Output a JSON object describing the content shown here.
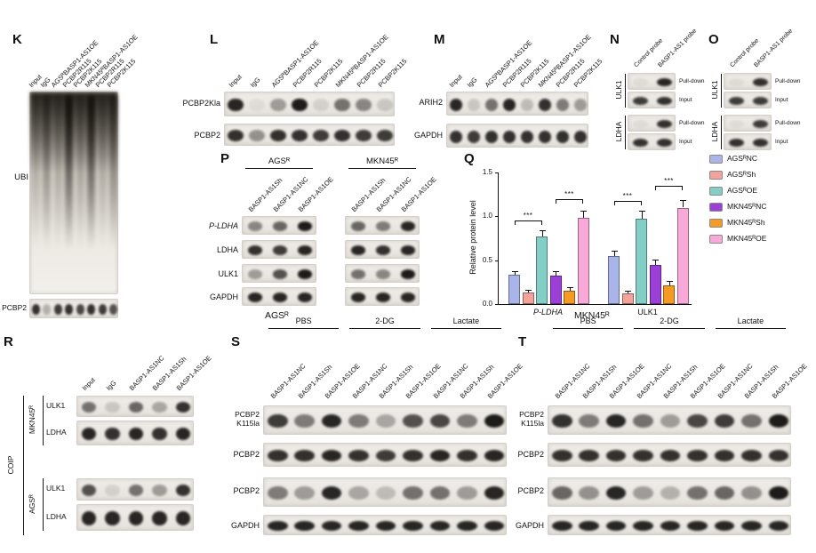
{
  "panels": {
    "K": {
      "letter": "K",
      "row_labels": [
        "UBI",
        "PCBP2"
      ],
      "lanes": [
        "Input",
        "IgG",
        "AGSᴿBASP1-AS1OE",
        "PCBP2R115",
        "PCBP2K115",
        "MKN45ᴿBASP1-AS1OE",
        "PCBP2R115",
        "PCBP2K115"
      ],
      "ubi_smear": [
        0.3,
        0.55,
        0.35,
        0.95,
        0.4,
        0.9,
        0.35,
        0.6
      ],
      "bands": {
        "PCBP2": [
          0.85,
          0.25,
          0.8,
          0.85,
          0.75,
          0.85,
          0.8,
          0.7
        ]
      }
    },
    "L": {
      "letter": "L",
      "row_labels": [
        "PCBP2Kla",
        "PCBP2"
      ],
      "lanes": [
        "Input",
        "IgG",
        "AGSᴿBASP1-AS1OE",
        "PCBP2R115",
        "PCBP2K115",
        "MKN45ᴿBASP1-AS1OE",
        "PCBP2R115",
        "PCBP2K115"
      ],
      "bands": {
        "row1": [
          0.9,
          0.05,
          0.35,
          0.95,
          0.1,
          0.55,
          0.45,
          0.15
        ],
        "row2": [
          0.85,
          0.4,
          0.85,
          0.85,
          0.8,
          0.85,
          0.8,
          0.8
        ]
      }
    },
    "M": {
      "letter": "M",
      "row_labels": [
        "ARIH2",
        "GAPDH"
      ],
      "lanes": [
        "Input",
        "IgG",
        "AGSᴿBASP1-AS1OE",
        "PCBP2R115",
        "PCBP2K115",
        "MKN45ᴿBASP1-AS1OE",
        "PCBP2R115",
        "PCBP2K115"
      ],
      "bands": {
        "row1": [
          0.9,
          0.15,
          0.55,
          0.9,
          0.2,
          0.85,
          0.5,
          0.35
        ],
        "row2": [
          0.85,
          0.8,
          0.85,
          0.85,
          0.85,
          0.85,
          0.85,
          0.85
        ]
      }
    },
    "N": {
      "letter": "N",
      "columns": [
        "Control probe",
        "BASP1-AS1 probe"
      ],
      "targets": [
        "ULK1",
        "LDHA"
      ],
      "row_labels": [
        "Pull-down",
        "Input",
        "Pull-down",
        "Input"
      ],
      "bands": [
        [
          0.05,
          0.9
        ],
        [
          0.8,
          0.85
        ],
        [
          0.05,
          0.85
        ],
        [
          0.85,
          0.85
        ]
      ]
    },
    "O": {
      "letter": "O",
      "columns": [
        "Control probe",
        "BASP1-AS1 probe"
      ],
      "targets": [
        "ULK1",
        "LDHA"
      ],
      "row_labels": [
        "Pull-down",
        "Input",
        "Pull-down",
        "Input"
      ],
      "bands": [
        [
          0.05,
          0.85
        ],
        [
          0.8,
          0.8
        ],
        [
          0.05,
          0.8
        ],
        [
          0.85,
          0.85
        ]
      ]
    },
    "P": {
      "letter": "P",
      "groups": [
        "AGSᴿ",
        "MKN45ᴿ"
      ],
      "lanes": [
        "BASP1-AS1Sh",
        "BASP1-AS1NC",
        "BASP1-AS1OE"
      ],
      "row_labels": [
        "P-LDHA",
        "LDHA",
        "ULK1",
        "GAPDH"
      ],
      "bands": [
        [
          [
            0.45,
            0.6,
            0.95
          ],
          [
            0.85,
            0.8,
            0.9
          ],
          [
            0.35,
            0.7,
            0.95
          ],
          [
            0.9,
            0.9,
            0.9
          ]
        ],
        [
          [
            0.6,
            0.5,
            0.9
          ],
          [
            0.9,
            0.85,
            0.9
          ],
          [
            0.55,
            0.45,
            0.95
          ],
          [
            0.9,
            0.9,
            0.9
          ]
        ]
      ]
    },
    "Q": {
      "letter": "Q"
    },
    "R": {
      "letter": "R",
      "side_label": "COIP",
      "groups": [
        "MKN45ᴿ",
        "AGSᴿ"
      ],
      "row_labels": [
        "ULK1",
        "LDHA"
      ],
      "lanes": [
        "Input",
        "IgG",
        "BASP1-AS1NC",
        "BASP1-AS1Sh",
        "BASP1-AS1OE"
      ],
      "bands": [
        [
          0.55,
          0.15,
          0.6,
          0.3,
          0.85
        ],
        [
          0.9,
          0.85,
          0.9,
          0.85,
          0.9
        ],
        [
          0.7,
          0.1,
          0.55,
          0.35,
          0.85
        ],
        [
          0.9,
          0.9,
          0.9,
          0.9,
          0.9
        ]
      ]
    },
    "S": {
      "letter": "S",
      "title": "AGSᴿ",
      "groups": [
        "PBS",
        "2-DG",
        "Lactate"
      ],
      "lanes": [
        "BASP1-AS1NC",
        "BASP1-AS1Sh",
        "BASP1-AS1OE"
      ],
      "row_label_lines": [
        "PCBP2",
        "K115la",
        "PCBP2",
        "PCBP2",
        "GAPDH"
      ],
      "bands": [
        [
          0.8,
          0.5,
          0.9,
          0.5,
          0.3,
          0.7,
          0.75,
          0.5,
          0.95
        ],
        [
          0.85,
          0.85,
          0.9,
          0.85,
          0.8,
          0.85,
          0.9,
          0.85,
          0.9
        ],
        [
          0.5,
          0.35,
          0.9,
          0.3,
          0.2,
          0.55,
          0.55,
          0.35,
          0.9
        ],
        [
          0.9,
          0.9,
          0.9,
          0.9,
          0.9,
          0.9,
          0.9,
          0.9,
          0.9
        ]
      ]
    },
    "T": {
      "letter": "T",
      "title": "MKN45ᴿ",
      "groups": [
        "PBS",
        "2-DG",
        "Lactate"
      ],
      "lanes": [
        "BASP1-AS1NC",
        "BASP1-AS1Sh",
        "BASP1-AS1OE"
      ],
      "row_label_lines": [
        "PCBP2",
        "K115la",
        "PCBP2",
        "PCBP2",
        "GAPDH"
      ],
      "bands": [
        [
          0.85,
          0.5,
          0.9,
          0.55,
          0.35,
          0.75,
          0.8,
          0.55,
          0.95
        ],
        [
          0.85,
          0.85,
          0.85,
          0.85,
          0.85,
          0.85,
          0.85,
          0.85,
          0.85
        ],
        [
          0.6,
          0.4,
          0.9,
          0.35,
          0.25,
          0.55,
          0.6,
          0.4,
          0.95
        ],
        [
          0.9,
          0.9,
          0.9,
          0.9,
          0.9,
          0.9,
          0.9,
          0.9,
          0.9
        ]
      ]
    }
  },
  "chart_data": {
    "type": "bar",
    "title": "",
    "ylabel": "Relative protein level",
    "ylim": [
      0,
      1.5
    ],
    "yticks": [
      0.0,
      0.5,
      1.0,
      1.5
    ],
    "categories": [
      "P-LDHA",
      "ULK1"
    ],
    "series": [
      {
        "name": "AGSᴿNC",
        "color": "#a9b5e8",
        "values": [
          0.33,
          0.55
        ]
      },
      {
        "name": "AGSᴿSh",
        "color": "#f2a39c",
        "values": [
          0.13,
          0.12
        ]
      },
      {
        "name": "AGSᴿOE",
        "color": "#83cfc6",
        "values": [
          0.77,
          0.97
        ]
      },
      {
        "name": "MKN45ᴿNC",
        "color": "#9b3fd6",
        "values": [
          0.32,
          0.45
        ]
      },
      {
        "name": "MKN45ᴿSh",
        "color": "#f59a23",
        "values": [
          0.15,
          0.21
        ]
      },
      {
        "name": "MKN45ᴿOE",
        "color": "#f8a9d9",
        "values": [
          0.98,
          1.1
        ]
      }
    ],
    "errors": [
      [
        0.05,
        0.03,
        0.07,
        0.06,
        0.04,
        0.08
      ],
      [
        0.06,
        0.03,
        0.09,
        0.06,
        0.05,
        0.09
      ]
    ],
    "annotations": [
      {
        "cat": 0,
        "from": 0,
        "to": 2,
        "at": 0.95,
        "label": "***"
      },
      {
        "cat": 0,
        "from": 3,
        "to": 5,
        "at": 1.2,
        "label": "***"
      },
      {
        "cat": 1,
        "from": 0,
        "to": 2,
        "at": 1.18,
        "label": "***"
      },
      {
        "cat": 1,
        "from": 3,
        "to": 5,
        "at": 1.35,
        "label": "***"
      }
    ],
    "legend_position": "right",
    "grid": false
  }
}
